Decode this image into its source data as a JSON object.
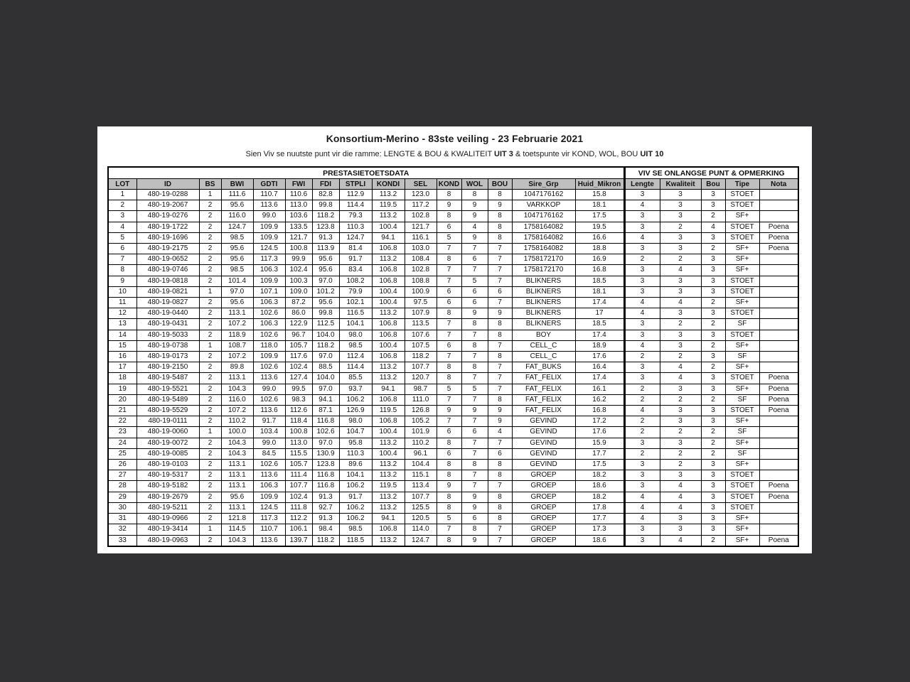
{
  "colors": {
    "page_background": "#313133",
    "paper_background": "#ffffff",
    "header_cell_background": "#bfbfbf",
    "border": "#000000"
  },
  "document": {
    "title": "Konsortium-Merino - 83ste veiling - 23 Februarie 2021",
    "subtitle": {
      "prefix": "Sien Viv se nuutste punt vir die ramme: LENGTE & BOU & KWALITEIT ",
      "bold1": "UIT 3",
      "middle": " & toetspunte vir KOND, WOL, BOU ",
      "bold2": "UIT 10"
    }
  },
  "table": {
    "group_headers": [
      {
        "label": "PRESTASIETOETSDATA",
        "span": 15
      },
      {
        "label": "VIV SE ONLANGSE PUNT & OPMERKING",
        "span": 5
      }
    ],
    "columns": [
      "LOT",
      "ID",
      "BS",
      "BWI",
      "GDTI",
      "FWI",
      "FDI",
      "STPLI",
      "KONDI",
      "SEL",
      "KOND",
      "WOL",
      "BOU",
      "Sire_Grp",
      "Huid_Mikron",
      "Lengte",
      "Kwaliteit",
      "Bou",
      "Tipe",
      "Nota"
    ],
    "rows": [
      [
        "1",
        "480-19-0288",
        "1",
        "111.6",
        "110.7",
        "110.6",
        "82.8",
        "112.9",
        "113.2",
        "123.0",
        "8",
        "8",
        "8",
        "1047176162",
        "15.8",
        "3",
        "3",
        "3",
        "STOET",
        ""
      ],
      [
        "2",
        "480-19-2067",
        "2",
        "95.6",
        "113.6",
        "113.0",
        "99.8",
        "114.4",
        "119.5",
        "117.2",
        "9",
        "9",
        "9",
        "VARKKOP",
        "18.1",
        "4",
        "3",
        "3",
        "STOET",
        ""
      ],
      [
        "3",
        "480-19-0276",
        "2",
        "116.0",
        "99.0",
        "103.6",
        "118.2",
        "79.3",
        "113.2",
        "102.8",
        "8",
        "9",
        "8",
        "1047176162",
        "17.5",
        "3",
        "3",
        "2",
        "SF+",
        ""
      ],
      [
        "4",
        "480-19-1722",
        "2",
        "124.7",
        "109.9",
        "133.5",
        "123.8",
        "110.3",
        "100.4",
        "121.7",
        "6",
        "4",
        "8",
        "1758164082",
        "19.5",
        "3",
        "2",
        "4",
        "STOET",
        "Poena"
      ],
      [
        "5",
        "480-19-1696",
        "2",
        "98.5",
        "109.9",
        "121.7",
        "91.3",
        "124.7",
        "94.1",
        "116.1",
        "5",
        "9",
        "8",
        "1758164082",
        "16.6",
        "4",
        "3",
        "3",
        "STOET",
        "Poena"
      ],
      [
        "6",
        "480-19-2175",
        "2",
        "95.6",
        "124.5",
        "100.8",
        "113.9",
        "81.4",
        "106.8",
        "103.0",
        "7",
        "7",
        "7",
        "1758164082",
        "18.8",
        "3",
        "3",
        "2",
        "SF+",
        "Poena"
      ],
      [
        "7",
        "480-19-0652",
        "2",
        "95.6",
        "117.3",
        "99.9",
        "95.6",
        "91.7",
        "113.2",
        "108.4",
        "8",
        "6",
        "7",
        "1758172170",
        "16.9",
        "2",
        "2",
        "3",
        "SF+",
        ""
      ],
      [
        "8",
        "480-19-0746",
        "2",
        "98.5",
        "106.3",
        "102.4",
        "95.6",
        "83.4",
        "106.8",
        "102.8",
        "7",
        "7",
        "7",
        "1758172170",
        "16.8",
        "3",
        "4",
        "3",
        "SF+",
        ""
      ],
      [
        "9",
        "480-19-0818",
        "2",
        "101.4",
        "109.9",
        "100.3",
        "97.0",
        "108.2",
        "106.8",
        "108.8",
        "7",
        "5",
        "7",
        "BLIKNERS",
        "18.5",
        "3",
        "3",
        "3",
        "STOET",
        ""
      ],
      [
        "10",
        "480-19-0821",
        "1",
        "97.0",
        "107.1",
        "109.0",
        "101.2",
        "79.9",
        "100.4",
        "100.9",
        "6",
        "6",
        "6",
        "BLIKNERS",
        "18.1",
        "3",
        "3",
        "3",
        "STOET",
        ""
      ],
      [
        "11",
        "480-19-0827",
        "2",
        "95.6",
        "106.3",
        "87.2",
        "95.6",
        "102.1",
        "100.4",
        "97.5",
        "6",
        "6",
        "7",
        "BLIKNERS",
        "17.4",
        "4",
        "4",
        "2",
        "SF+",
        ""
      ],
      [
        "12",
        "480-19-0440",
        "2",
        "113.1",
        "102.6",
        "86.0",
        "99.8",
        "116.5",
        "113.2",
        "107.9",
        "8",
        "9",
        "9",
        "BLIKNERS",
        "17",
        "4",
        "3",
        "3",
        "STOET",
        ""
      ],
      [
        "13",
        "480-19-0431",
        "2",
        "107.2",
        "106.3",
        "122.9",
        "112.5",
        "104.1",
        "106.8",
        "113.5",
        "7",
        "8",
        "8",
        "BLIKNERS",
        "18.5",
        "3",
        "2",
        "2",
        "SF",
        ""
      ],
      [
        "14",
        "480-19-5033",
        "2",
        "118.9",
        "102.6",
        "96.7",
        "104.0",
        "98.0",
        "106.8",
        "107.6",
        "7",
        "7",
        "8",
        "BOY",
        "17.4",
        "3",
        "3",
        "3",
        "STOET",
        ""
      ],
      [
        "15",
        "480-19-0738",
        "1",
        "108.7",
        "118.0",
        "105.7",
        "118.2",
        "98.5",
        "100.4",
        "107.5",
        "6",
        "8",
        "7",
        "CELL_C",
        "18.9",
        "4",
        "3",
        "2",
        "SF+",
        ""
      ],
      [
        "16",
        "480-19-0173",
        "2",
        "107.2",
        "109.9",
        "117.6",
        "97.0",
        "112.4",
        "106.8",
        "118.2",
        "7",
        "7",
        "8",
        "CELL_C",
        "17.6",
        "2",
        "2",
        "3",
        "SF",
        ""
      ],
      [
        "17",
        "480-19-2150",
        "2",
        "89.8",
        "102.6",
        "102.4",
        "88.5",
        "114.4",
        "113.2",
        "107.7",
        "8",
        "8",
        "7",
        "FAT_BUKS",
        "16.4",
        "3",
        "4",
        "2",
        "SF+",
        ""
      ],
      [
        "18",
        "480-19-5487",
        "2",
        "113.1",
        "113.6",
        "127.4",
        "104.0",
        "85.5",
        "113.2",
        "120.7",
        "8",
        "7",
        "7",
        "FAT_FELIX",
        "17.4",
        "3",
        "4",
        "3",
        "STOET",
        "Poena"
      ],
      [
        "19",
        "480-19-5521",
        "2",
        "104.3",
        "99.0",
        "99.5",
        "97.0",
        "93.7",
        "94.1",
        "98.7",
        "5",
        "5",
        "7",
        "FAT_FELIX",
        "16.1",
        "2",
        "3",
        "3",
        "SF+",
        "Poena"
      ],
      [
        "20",
        "480-19-5489",
        "2",
        "116.0",
        "102.6",
        "98.3",
        "94.1",
        "106.2",
        "106.8",
        "111.0",
        "7",
        "7",
        "8",
        "FAT_FELIX",
        "16.2",
        "2",
        "2",
        "2",
        "SF",
        "Poena"
      ],
      [
        "21",
        "480-19-5529",
        "2",
        "107.2",
        "113.6",
        "112.6",
        "87.1",
        "126.9",
        "119.5",
        "126.8",
        "9",
        "9",
        "9",
        "FAT_FELIX",
        "16.8",
        "4",
        "3",
        "3",
        "STOET",
        "Poena"
      ],
      [
        "22",
        "480-19-0111",
        "2",
        "110.2",
        "91.7",
        "118.4",
        "116.8",
        "98.0",
        "106.8",
        "105.2",
        "7",
        "7",
        "9",
        "GEVIND",
        "17.2",
        "2",
        "3",
        "3",
        "SF+",
        ""
      ],
      [
        "23",
        "480-19-0060",
        "1",
        "100.0",
        "103.4",
        "100.8",
        "102.6",
        "104.7",
        "100.4",
        "101.9",
        "6",
        "6",
        "4",
        "GEVIND",
        "17.6",
        "2",
        "2",
        "2",
        "SF",
        ""
      ],
      [
        "24",
        "480-19-0072",
        "2",
        "104.3",
        "99.0",
        "113.0",
        "97.0",
        "95.8",
        "113.2",
        "110.2",
        "8",
        "7",
        "7",
        "GEVIND",
        "15.9",
        "3",
        "3",
        "2",
        "SF+",
        ""
      ],
      [
        "25",
        "480-19-0085",
        "2",
        "104.3",
        "84.5",
        "115.5",
        "130.9",
        "110.3",
        "100.4",
        "96.1",
        "6",
        "7",
        "6",
        "GEVIND",
        "17.7",
        "2",
        "2",
        "2",
        "SF",
        ""
      ],
      [
        "26",
        "480-19-0103",
        "2",
        "113.1",
        "102.6",
        "105.7",
        "123.8",
        "89.6",
        "113.2",
        "104.4",
        "8",
        "8",
        "8",
        "GEVIND",
        "17.5",
        "3",
        "2",
        "3",
        "SF+",
        ""
      ],
      [
        "27",
        "480-19-5317",
        "2",
        "113.1",
        "113.6",
        "111.4",
        "116.8",
        "104.1",
        "113.2",
        "115.1",
        "8",
        "7",
        "8",
        "GROEP",
        "18.2",
        "3",
        "3",
        "3",
        "STOET",
        ""
      ],
      [
        "28",
        "480-19-5182",
        "2",
        "113.1",
        "106.3",
        "107.7",
        "116.8",
        "106.2",
        "119.5",
        "113.4",
        "9",
        "7",
        "7",
        "GROEP",
        "18.6",
        "3",
        "4",
        "3",
        "STOET",
        "Poena"
      ],
      [
        "29",
        "480-19-2679",
        "2",
        "95.6",
        "109.9",
        "102.4",
        "91.3",
        "91.7",
        "113.2",
        "107.7",
        "8",
        "9",
        "8",
        "GROEP",
        "18.2",
        "4",
        "4",
        "3",
        "STOET",
        "Poena"
      ],
      [
        "30",
        "480-19-5211",
        "2",
        "113.1",
        "124.5",
        "111.8",
        "92.7",
        "106.2",
        "113.2",
        "125.5",
        "8",
        "9",
        "8",
        "GROEP",
        "17.8",
        "4",
        "4",
        "3",
        "STOET",
        ""
      ],
      [
        "31",
        "480-19-0966",
        "2",
        "121.8",
        "117.3",
        "112.2",
        "91.3",
        "106.2",
        "94.1",
        "120.5",
        "5",
        "6",
        "8",
        "GROEP",
        "17.7",
        "4",
        "3",
        "3",
        "SF+",
        ""
      ],
      [
        "32",
        "480-19-3414",
        "1",
        "114.5",
        "110.7",
        "106.1",
        "98.4",
        "98.5",
        "106.8",
        "114.0",
        "7",
        "8",
        "7",
        "GROEP",
        "17.3",
        "3",
        "3",
        "3",
        "SF+",
        ""
      ],
      [
        "33",
        "480-19-0963",
        "2",
        "104.3",
        "113.6",
        "139.7",
        "118.2",
        "118.5",
        "113.2",
        "124.7",
        "8",
        "9",
        "7",
        "GROEP",
        "18.6",
        "3",
        "4",
        "2",
        "SF+",
        "Poena"
      ]
    ]
  }
}
